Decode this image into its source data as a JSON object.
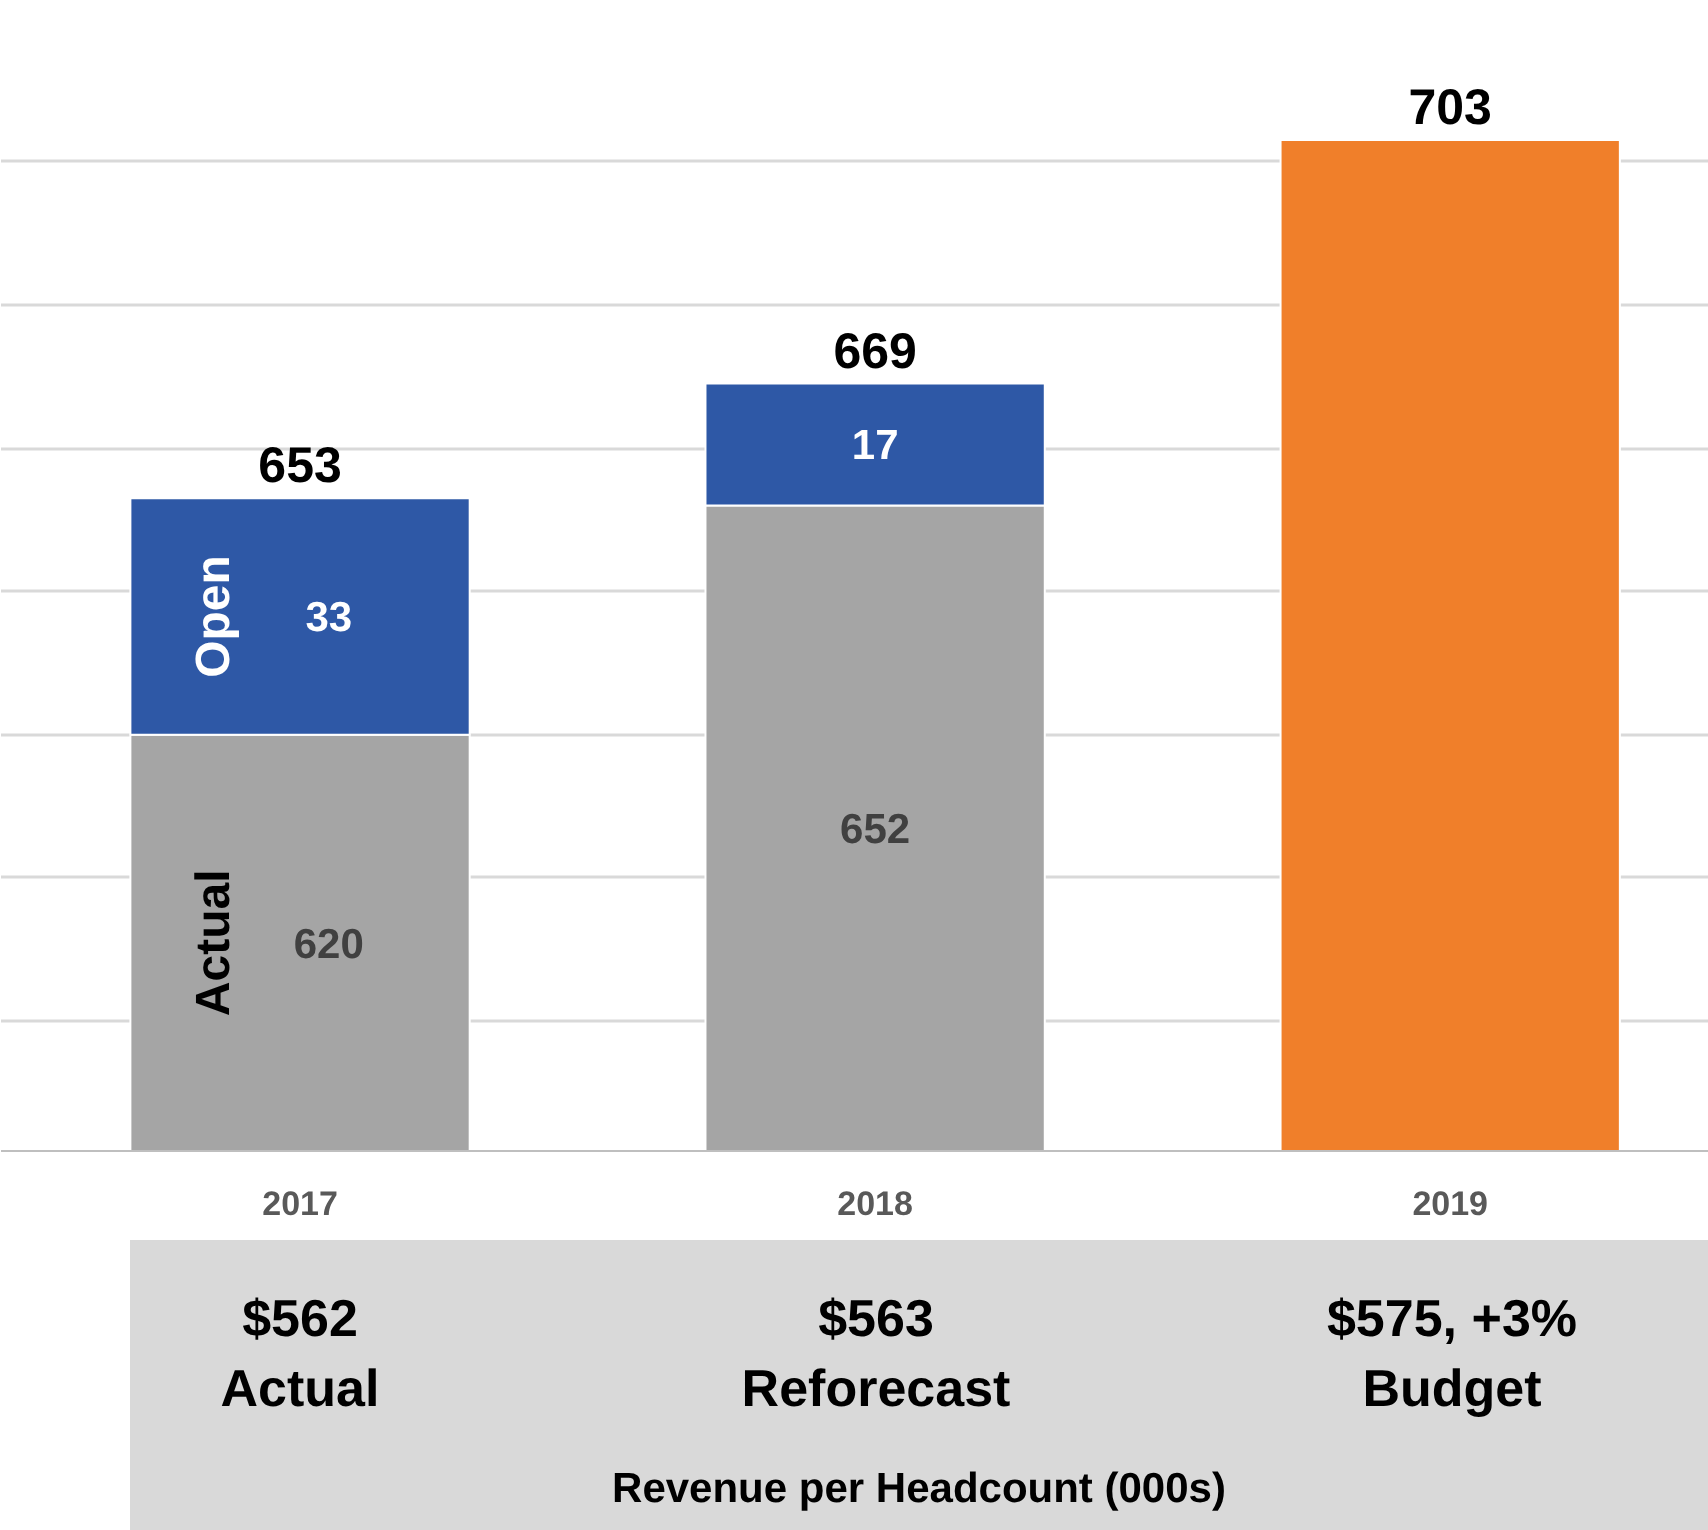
{
  "chart_data": {
    "type": "bar",
    "stacked": true,
    "categories": [
      "2017",
      "2018",
      "2019"
    ],
    "series": [
      {
        "name": "Actual",
        "color": "#a5a5a5",
        "values": [
          620,
          652,
          null
        ],
        "value_labels": [
          "620",
          "652",
          null
        ]
      },
      {
        "name": "Open",
        "color": "#2e58a6",
        "values": [
          33,
          17,
          null
        ],
        "value_labels": [
          "33",
          "17",
          null
        ]
      },
      {
        "color": "#f07f2a",
        "values": [
          null,
          null,
          703
        ],
        "value_labels": [
          null,
          null,
          null
        ]
      }
    ],
    "totals": [
      "653",
      "669",
      "703"
    ],
    "grid": "y",
    "tick_labels": "x",
    "annotations": [
      "$562\nActual",
      "$563\nReforecast",
      "$575, +3%\nBudget",
      "Revenue per Headcount (000s)"
    ]
  }
}
